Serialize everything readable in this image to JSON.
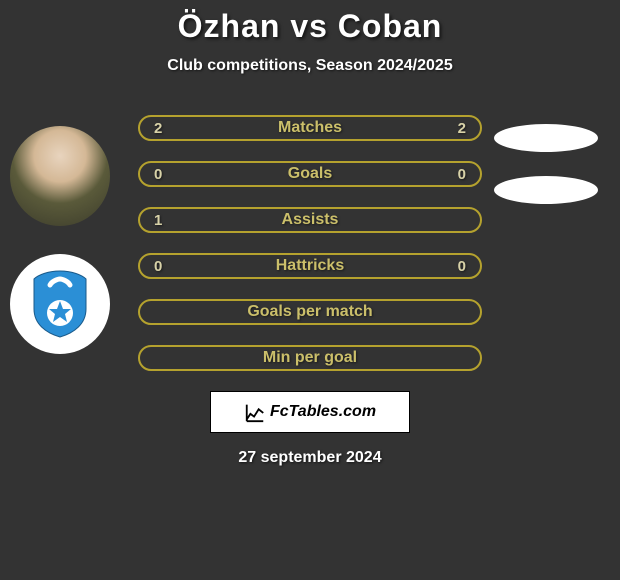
{
  "title": "Özhan vs Coban",
  "subtitle": "Club competitions, Season 2024/2025",
  "date": "27 september 2024",
  "brand": "FcTables.com",
  "stat_colors": {
    "row_border": "#b5a22e",
    "row_text": "#cbbf6a",
    "val_text": "#d8d2a8"
  },
  "stat_rows": [
    {
      "left": "2",
      "label": "Matches",
      "right": "2"
    },
    {
      "left": "0",
      "label": "Goals",
      "right": "0"
    },
    {
      "left": "1",
      "label": "Assists",
      "right": ""
    },
    {
      "left": "0",
      "label": "Hattricks",
      "right": "0"
    },
    {
      "left": "",
      "label": "Goals per match",
      "right": ""
    },
    {
      "left": "",
      "label": "Min per goal",
      "right": ""
    }
  ]
}
